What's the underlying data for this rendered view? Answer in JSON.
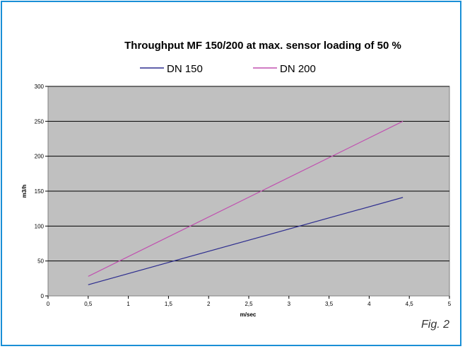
{
  "chart_data": {
    "type": "line",
    "title": "Throughput MF 150/200 at max. sensor loading of 50 %",
    "xlabel": "m/sec",
    "ylabel": "m3/h",
    "xlim": [
      0,
      5
    ],
    "ylim": [
      0,
      300
    ],
    "xticks": [
      "0",
      "0,5",
      "1",
      "1,5",
      "2",
      "2,5",
      "3",
      "3,5",
      "4",
      "4,5",
      "5"
    ],
    "yticks": [
      "0",
      "50",
      "100",
      "150",
      "200",
      "250",
      "300"
    ],
    "grid": "horizontal",
    "legend_position": "top",
    "plot_background": "#c0c0c0",
    "series": [
      {
        "name": "DN 150",
        "color": "#2e2e8f",
        "x": [
          0.5,
          4.42
        ],
        "y": [
          16,
          141
        ]
      },
      {
        "name": "DN 200",
        "color": "#c050b0",
        "x": [
          0.5,
          4.42
        ],
        "y": [
          28,
          250
        ]
      }
    ]
  },
  "figure_label": "Fig. 2"
}
